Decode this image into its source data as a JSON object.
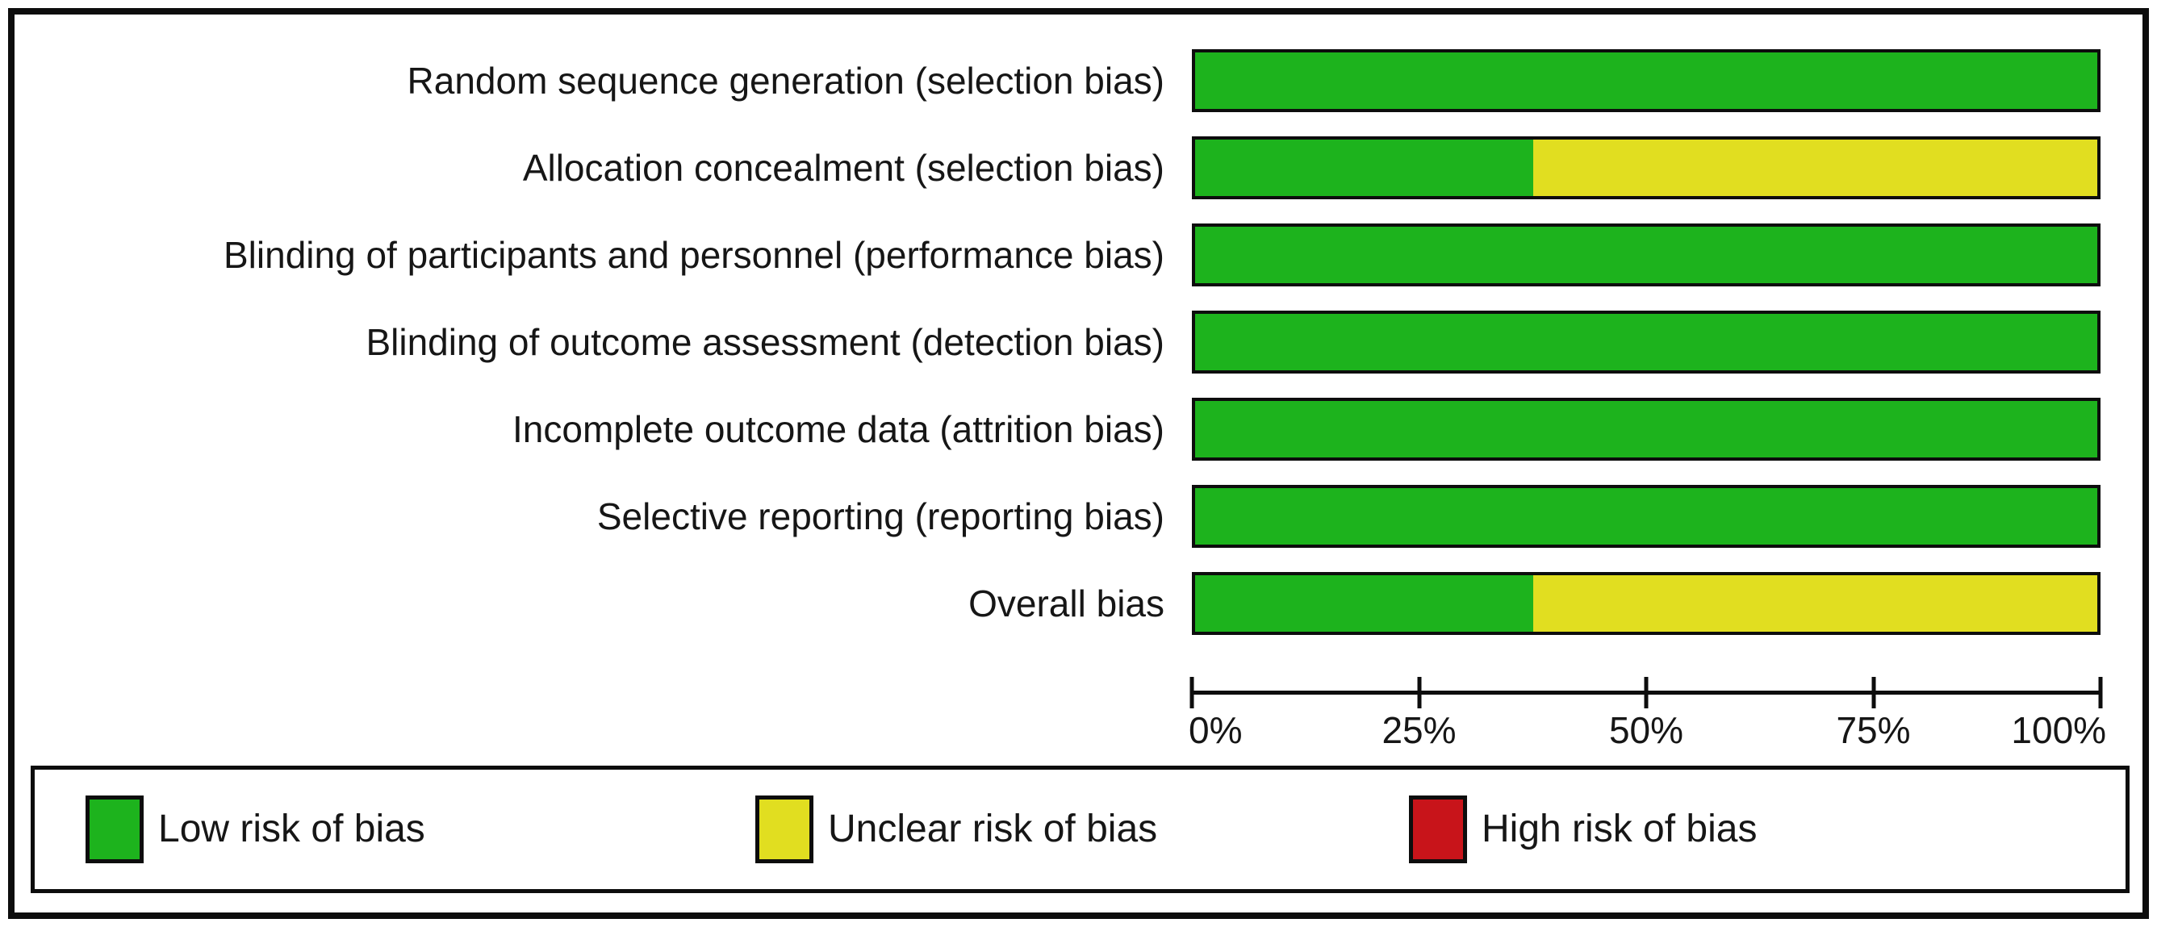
{
  "chart_data": {
    "type": "bar",
    "orientation": "horizontal",
    "stacked": true,
    "title": "",
    "xlabel": "",
    "ylabel": "",
    "xlim": [
      0,
      100
    ],
    "grid": false,
    "legend_position": "bottom",
    "x_ticks": [
      "0%",
      "25%",
      "50%",
      "75%",
      "100%"
    ],
    "categories": [
      "Random sequence generation (selection bias)",
      "Allocation concealment (selection bias)",
      "Blinding of participants and personnel (performance bias)",
      "Blinding of outcome assessment (detection bias)",
      "Incomplete outcome data (attrition bias)",
      "Selective reporting (reporting bias)",
      "Overall bias"
    ],
    "series": [
      {
        "key": "low",
        "name": "Low risk of bias",
        "color": "#1db31d",
        "values": [
          100,
          37.5,
          100,
          100,
          100,
          100,
          37.5
        ]
      },
      {
        "key": "unclear",
        "name": "Unclear risk of bias",
        "color": "#e1de20",
        "values": [
          0,
          62.5,
          0,
          0,
          0,
          0,
          62.5
        ]
      },
      {
        "key": "high",
        "name": "High risk of bias",
        "color": "#c8141a",
        "values": [
          0,
          0,
          0,
          0,
          0,
          0,
          0
        ]
      }
    ]
  }
}
